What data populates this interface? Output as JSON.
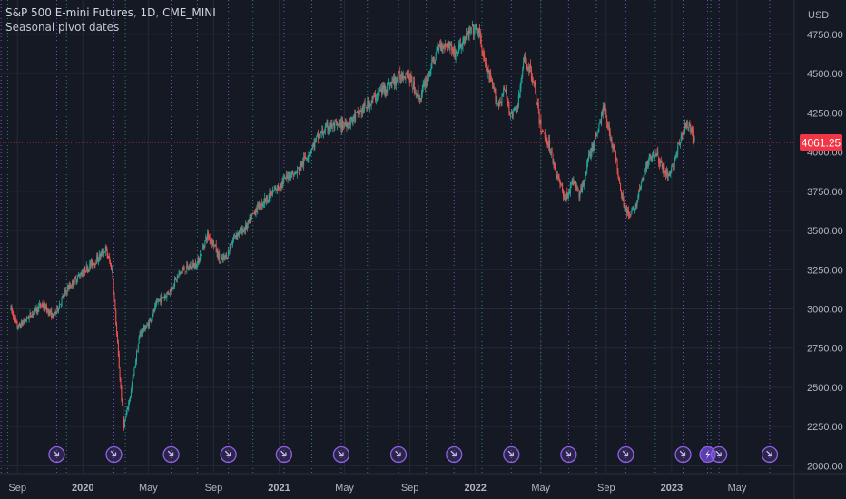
{
  "header": {
    "symbol": "S&P 500 E-mini Futures",
    "interval": "1D",
    "exchange": "CME_MINI",
    "indicator": "Seasonal pivot dates"
  },
  "colors": {
    "background": "#151924",
    "grid": "#242936",
    "up": "#26a69a",
    "down": "#ef5350",
    "pivot_line": "#8f5fe8",
    "month_line": "#2f7f79",
    "price_tag": "#f23645",
    "axis_text": "#b2b5be"
  },
  "chart_data": {
    "type": "candlestick",
    "currency_label": "USD",
    "y_ticks": [
      "4750.00",
      "4500.00",
      "4250.00",
      "4000.00",
      "3750.00",
      "3500.00",
      "3250.00",
      "3000.00",
      "2750.00",
      "2500.00",
      "2250.00",
      "2000.00"
    ],
    "ylim": [
      1950,
      4900
    ],
    "x_labels": [
      {
        "text": "Sep",
        "t": 0.0,
        "bold": false
      },
      {
        "text": "2020",
        "t": 4.0,
        "bold": true
      },
      {
        "text": "May",
        "t": 8.0,
        "bold": false
      },
      {
        "text": "Sep",
        "t": 12.0,
        "bold": false
      },
      {
        "text": "2021",
        "t": 16.0,
        "bold": true
      },
      {
        "text": "May",
        "t": 20.0,
        "bold": false
      },
      {
        "text": "Sep",
        "t": 24.0,
        "bold": false
      },
      {
        "text": "2022",
        "t": 28.0,
        "bold": true
      },
      {
        "text": "May",
        "t": 32.0,
        "bold": false
      },
      {
        "text": "Sep",
        "t": 36.0,
        "bold": false
      },
      {
        "text": "2023",
        "t": 40.0,
        "bold": true
      },
      {
        "text": "May",
        "t": 44.0,
        "bold": false
      }
    ],
    "last_price": "4061.25",
    "last_price_value": 4061.25,
    "series_anchors": [
      {
        "t": -0.4,
        "v": 3000
      },
      {
        "t": 0.0,
        "v": 2880
      },
      {
        "t": 0.8,
        "v": 2960
      },
      {
        "t": 1.5,
        "v": 3030
      },
      {
        "t": 2.2,
        "v": 2950
      },
      {
        "t": 3.0,
        "v": 3120
      },
      {
        "t": 4.0,
        "v": 3240
      },
      {
        "t": 4.8,
        "v": 3310
      },
      {
        "t": 5.4,
        "v": 3380
      },
      {
        "t": 5.8,
        "v": 3240
      },
      {
        "t": 6.2,
        "v": 2650
      },
      {
        "t": 6.5,
        "v": 2250
      },
      {
        "t": 6.9,
        "v": 2450
      },
      {
        "t": 7.5,
        "v": 2850
      },
      {
        "t": 8.0,
        "v": 2900
      },
      {
        "t": 8.6,
        "v": 3050
      },
      {
        "t": 9.2,
        "v": 3100
      },
      {
        "t": 10.0,
        "v": 3240
      },
      {
        "t": 11.0,
        "v": 3290
      },
      {
        "t": 11.6,
        "v": 3470
      },
      {
        "t": 12.0,
        "v": 3420
      },
      {
        "t": 12.4,
        "v": 3300
      },
      {
        "t": 12.8,
        "v": 3340
      },
      {
        "t": 13.3,
        "v": 3470
      },
      {
        "t": 14.0,
        "v": 3520
      },
      {
        "t": 14.6,
        "v": 3640
      },
      {
        "t": 15.4,
        "v": 3720
      },
      {
        "t": 16.0,
        "v": 3780
      },
      {
        "t": 16.6,
        "v": 3860
      },
      {
        "t": 17.0,
        "v": 3860
      },
      {
        "t": 17.6,
        "v": 3960
      },
      {
        "t": 18.4,
        "v": 4100
      },
      {
        "t": 19.0,
        "v": 4160
      },
      {
        "t": 19.8,
        "v": 4170
      },
      {
        "t": 20.4,
        "v": 4200
      },
      {
        "t": 21.0,
        "v": 4260
      },
      {
        "t": 21.6,
        "v": 4320
      },
      {
        "t": 22.2,
        "v": 4390
      },
      {
        "t": 23.0,
        "v": 4450
      },
      {
        "t": 23.8,
        "v": 4510
      },
      {
        "t": 24.2,
        "v": 4420
      },
      {
        "t": 24.6,
        "v": 4340
      },
      {
        "t": 25.2,
        "v": 4520
      },
      {
        "t": 25.8,
        "v": 4680
      },
      {
        "t": 26.4,
        "v": 4690
      },
      {
        "t": 26.8,
        "v": 4620
      },
      {
        "t": 27.2,
        "v": 4700
      },
      {
        "t": 27.8,
        "v": 4780
      },
      {
        "t": 28.2,
        "v": 4770
      },
      {
        "t": 28.6,
        "v": 4550
      },
      {
        "t": 29.0,
        "v": 4430
      },
      {
        "t": 29.4,
        "v": 4300
      },
      {
        "t": 29.8,
        "v": 4400
      },
      {
        "t": 30.2,
        "v": 4230
      },
      {
        "t": 30.6,
        "v": 4300
      },
      {
        "t": 31.0,
        "v": 4600
      },
      {
        "t": 31.5,
        "v": 4480
      },
      {
        "t": 32.0,
        "v": 4150
      },
      {
        "t": 32.5,
        "v": 4050
      },
      {
        "t": 33.0,
        "v": 3850
      },
      {
        "t": 33.5,
        "v": 3700
      },
      {
        "t": 34.0,
        "v": 3820
      },
      {
        "t": 34.4,
        "v": 3720
      },
      {
        "t": 34.9,
        "v": 3950
      },
      {
        "t": 35.5,
        "v": 4150
      },
      {
        "t": 35.9,
        "v": 4300
      },
      {
        "t": 36.2,
        "v": 4120
      },
      {
        "t": 36.6,
        "v": 3950
      },
      {
        "t": 37.0,
        "v": 3700
      },
      {
        "t": 37.4,
        "v": 3580
      },
      {
        "t": 37.8,
        "v": 3660
      },
      {
        "t": 38.2,
        "v": 3820
      },
      {
        "t": 38.6,
        "v": 3950
      },
      {
        "t": 39.0,
        "v": 4010
      },
      {
        "t": 39.4,
        "v": 3900
      },
      {
        "t": 39.8,
        "v": 3850
      },
      {
        "t": 40.2,
        "v": 3950
      },
      {
        "t": 40.6,
        "v": 4100
      },
      {
        "t": 40.9,
        "v": 4180
      },
      {
        "t": 41.2,
        "v": 4120
      },
      {
        "t": 41.4,
        "v": 4060
      }
    ],
    "pivot_markers_t": [
      -1.0,
      2.4,
      5.9,
      9.4,
      12.9,
      16.3,
      19.8,
      23.3,
      26.7,
      30.2,
      33.7,
      37.2,
      40.7,
      42.2,
      42.9,
      46.0
    ],
    "highlighted_marker_index": 13,
    "month_lines_t": [
      -0.6,
      3.0,
      6.6,
      11.0,
      14.4,
      18.0,
      21.4,
      25.0,
      28.4,
      32.0,
      35.4,
      39.0,
      42.4
    ]
  }
}
